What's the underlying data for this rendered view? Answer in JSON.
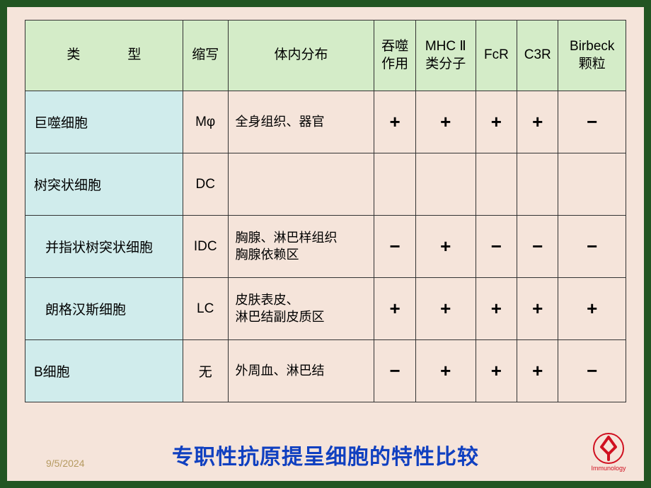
{
  "table": {
    "headers": {
      "type": "类　型",
      "abbrev": "缩写",
      "distribution": "体内分布",
      "phagocytosis": "吞噬\n作用",
      "mhc2": "MHC Ⅱ\n类分子",
      "fcr": "FcR",
      "c3r": "C3R",
      "birbeck": "Birbeck\n颗粒"
    },
    "col_widths": [
      "210",
      "60",
      "195",
      "55",
      "80",
      "55",
      "55",
      "90"
    ],
    "rows": [
      {
        "label": "巨噬细胞",
        "indent": false,
        "abbrev": "Mφ",
        "distribution": "全身组织、器官",
        "marks": [
          "+",
          "+",
          "+",
          "+",
          "−"
        ]
      },
      {
        "label": "树突状细胞",
        "indent": false,
        "abbrev": "DC",
        "distribution": "",
        "marks": [
          "",
          "",
          "",
          "",
          ""
        ]
      },
      {
        "label": "并指状树突状细胞",
        "indent": true,
        "abbrev": "IDC",
        "distribution": "胸腺、淋巴样组织\n胸腺依赖区",
        "marks": [
          "−",
          "+",
          "−",
          "−",
          "−"
        ]
      },
      {
        "label": "朗格汉斯细胞",
        "indent": true,
        "abbrev": "LC",
        "distribution": "皮肤表皮、\n淋巴结副皮质区",
        "marks": [
          "+",
          "+",
          "+",
          "+",
          "+"
        ]
      },
      {
        "label": "B细胞",
        "indent": false,
        "abbrev": "无",
        "distribution": "外周血、淋巴结",
        "marks": [
          "−",
          "+",
          "+",
          "+",
          "−"
        ]
      }
    ]
  },
  "title": "专职性抗原提呈细胞的特性比较",
  "date": "9/5/2024",
  "logo_text": "Immunology",
  "colors": {
    "outer_background": "#225522",
    "slide_background": "#f5e4da",
    "header_background": "#d4ecc8",
    "rowlabel_background": "#d0ecec",
    "cell_background": "#f5e4da",
    "border": "#333333",
    "title": "#1040c0",
    "date": "#b59a60",
    "logo": "#d01020"
  }
}
